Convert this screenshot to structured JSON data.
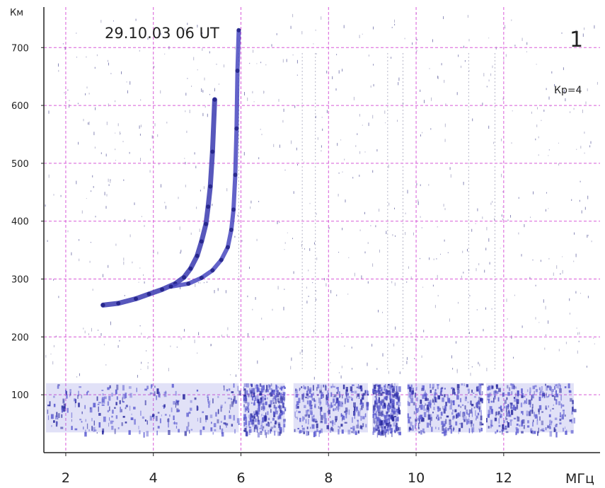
{
  "chart_data": {
    "type": "scatter",
    "title": "29.10.03  06 UT",
    "panel_number": "1",
    "annotation": "Кр=4",
    "xlabel": "МГц",
    "ylabel": "Км",
    "xlim": [
      1.5,
      14.2
    ],
    "ylim": [
      0,
      770
    ],
    "grid": true,
    "grid_color": "#d85ad8",
    "x_ticks": [
      2,
      4,
      6,
      8,
      10,
      12
    ],
    "x_tick_labels": [
      "2",
      "4",
      "6",
      "8",
      "10",
      "12"
    ],
    "y_ticks": [
      100,
      200,
      300,
      400,
      500,
      600,
      700
    ],
    "y_tick_labels": [
      "100",
      "200",
      "300",
      "400",
      "500",
      "600",
      "700"
    ],
    "series": [
      {
        "kind": "trace",
        "color": "#3a3ab0",
        "points": [
          [
            2.85,
            255
          ],
          [
            3.2,
            258
          ],
          [
            3.6,
            266
          ],
          [
            3.9,
            274
          ],
          [
            4.2,
            282
          ],
          [
            4.5,
            292
          ],
          [
            4.7,
            303
          ],
          [
            4.85,
            318
          ],
          [
            5.0,
            340
          ],
          [
            5.1,
            365
          ],
          [
            5.2,
            395
          ],
          [
            5.25,
            425
          ],
          [
            5.3,
            460
          ],
          [
            5.35,
            520
          ],
          [
            5.4,
            610
          ]
        ]
      },
      {
        "kind": "trace",
        "color": "#4848c0",
        "points": [
          [
            4.4,
            287
          ],
          [
            4.8,
            292
          ],
          [
            5.1,
            302
          ],
          [
            5.35,
            315
          ],
          [
            5.55,
            333
          ],
          [
            5.7,
            355
          ],
          [
            5.78,
            385
          ],
          [
            5.83,
            420
          ],
          [
            5.87,
            480
          ],
          [
            5.9,
            560
          ],
          [
            5.92,
            660
          ],
          [
            5.95,
            730
          ]
        ]
      },
      {
        "kind": "noise-band",
        "color": "#5a5ad0",
        "segments": [
          [
            1.55,
            5.95
          ],
          [
            6.05,
            7.0
          ],
          [
            7.2,
            8.9
          ],
          [
            9.0,
            9.6
          ],
          [
            9.8,
            11.5
          ],
          [
            11.6,
            13.6
          ]
        ],
        "y_range": [
          35,
          120
        ]
      }
    ]
  }
}
